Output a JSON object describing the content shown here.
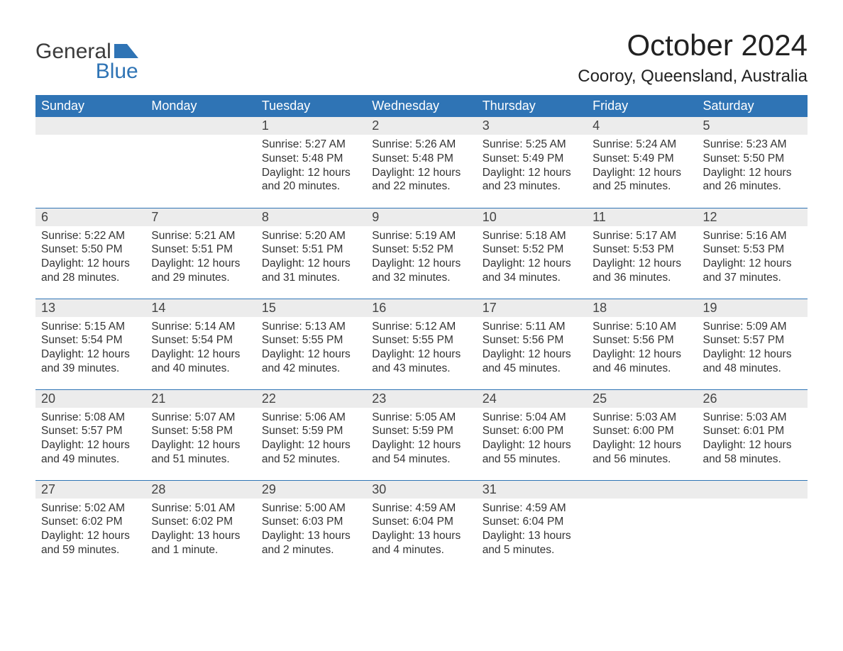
{
  "logo": {
    "word1": "General",
    "word2": "Blue",
    "accent_color": "#2f74b5",
    "text_color": "#3b3b3b"
  },
  "title": "October 2024",
  "location": "Cooroy, Queensland, Australia",
  "colors": {
    "header_bg": "#2f74b5",
    "header_text": "#ffffff",
    "daynum_bg": "#ececec",
    "body_text": "#333333",
    "page_bg": "#ffffff"
  },
  "day_headers": [
    "Sunday",
    "Monday",
    "Tuesday",
    "Wednesday",
    "Thursday",
    "Friday",
    "Saturday"
  ],
  "weeks": [
    [
      null,
      null,
      {
        "n": "1",
        "sr": "Sunrise: 5:27 AM",
        "ss": "Sunset: 5:48 PM",
        "d1": "Daylight: 12 hours",
        "d2": "and 20 minutes."
      },
      {
        "n": "2",
        "sr": "Sunrise: 5:26 AM",
        "ss": "Sunset: 5:48 PM",
        "d1": "Daylight: 12 hours",
        "d2": "and 22 minutes."
      },
      {
        "n": "3",
        "sr": "Sunrise: 5:25 AM",
        "ss": "Sunset: 5:49 PM",
        "d1": "Daylight: 12 hours",
        "d2": "and 23 minutes."
      },
      {
        "n": "4",
        "sr": "Sunrise: 5:24 AM",
        "ss": "Sunset: 5:49 PM",
        "d1": "Daylight: 12 hours",
        "d2": "and 25 minutes."
      },
      {
        "n": "5",
        "sr": "Sunrise: 5:23 AM",
        "ss": "Sunset: 5:50 PM",
        "d1": "Daylight: 12 hours",
        "d2": "and 26 minutes."
      }
    ],
    [
      {
        "n": "6",
        "sr": "Sunrise: 5:22 AM",
        "ss": "Sunset: 5:50 PM",
        "d1": "Daylight: 12 hours",
        "d2": "and 28 minutes."
      },
      {
        "n": "7",
        "sr": "Sunrise: 5:21 AM",
        "ss": "Sunset: 5:51 PM",
        "d1": "Daylight: 12 hours",
        "d2": "and 29 minutes."
      },
      {
        "n": "8",
        "sr": "Sunrise: 5:20 AM",
        "ss": "Sunset: 5:51 PM",
        "d1": "Daylight: 12 hours",
        "d2": "and 31 minutes."
      },
      {
        "n": "9",
        "sr": "Sunrise: 5:19 AM",
        "ss": "Sunset: 5:52 PM",
        "d1": "Daylight: 12 hours",
        "d2": "and 32 minutes."
      },
      {
        "n": "10",
        "sr": "Sunrise: 5:18 AM",
        "ss": "Sunset: 5:52 PM",
        "d1": "Daylight: 12 hours",
        "d2": "and 34 minutes."
      },
      {
        "n": "11",
        "sr": "Sunrise: 5:17 AM",
        "ss": "Sunset: 5:53 PM",
        "d1": "Daylight: 12 hours",
        "d2": "and 36 minutes."
      },
      {
        "n": "12",
        "sr": "Sunrise: 5:16 AM",
        "ss": "Sunset: 5:53 PM",
        "d1": "Daylight: 12 hours",
        "d2": "and 37 minutes."
      }
    ],
    [
      {
        "n": "13",
        "sr": "Sunrise: 5:15 AM",
        "ss": "Sunset: 5:54 PM",
        "d1": "Daylight: 12 hours",
        "d2": "and 39 minutes."
      },
      {
        "n": "14",
        "sr": "Sunrise: 5:14 AM",
        "ss": "Sunset: 5:54 PM",
        "d1": "Daylight: 12 hours",
        "d2": "and 40 minutes."
      },
      {
        "n": "15",
        "sr": "Sunrise: 5:13 AM",
        "ss": "Sunset: 5:55 PM",
        "d1": "Daylight: 12 hours",
        "d2": "and 42 minutes."
      },
      {
        "n": "16",
        "sr": "Sunrise: 5:12 AM",
        "ss": "Sunset: 5:55 PM",
        "d1": "Daylight: 12 hours",
        "d2": "and 43 minutes."
      },
      {
        "n": "17",
        "sr": "Sunrise: 5:11 AM",
        "ss": "Sunset: 5:56 PM",
        "d1": "Daylight: 12 hours",
        "d2": "and 45 minutes."
      },
      {
        "n": "18",
        "sr": "Sunrise: 5:10 AM",
        "ss": "Sunset: 5:56 PM",
        "d1": "Daylight: 12 hours",
        "d2": "and 46 minutes."
      },
      {
        "n": "19",
        "sr": "Sunrise: 5:09 AM",
        "ss": "Sunset: 5:57 PM",
        "d1": "Daylight: 12 hours",
        "d2": "and 48 minutes."
      }
    ],
    [
      {
        "n": "20",
        "sr": "Sunrise: 5:08 AM",
        "ss": "Sunset: 5:57 PM",
        "d1": "Daylight: 12 hours",
        "d2": "and 49 minutes."
      },
      {
        "n": "21",
        "sr": "Sunrise: 5:07 AM",
        "ss": "Sunset: 5:58 PM",
        "d1": "Daylight: 12 hours",
        "d2": "and 51 minutes."
      },
      {
        "n": "22",
        "sr": "Sunrise: 5:06 AM",
        "ss": "Sunset: 5:59 PM",
        "d1": "Daylight: 12 hours",
        "d2": "and 52 minutes."
      },
      {
        "n": "23",
        "sr": "Sunrise: 5:05 AM",
        "ss": "Sunset: 5:59 PM",
        "d1": "Daylight: 12 hours",
        "d2": "and 54 minutes."
      },
      {
        "n": "24",
        "sr": "Sunrise: 5:04 AM",
        "ss": "Sunset: 6:00 PM",
        "d1": "Daylight: 12 hours",
        "d2": "and 55 minutes."
      },
      {
        "n": "25",
        "sr": "Sunrise: 5:03 AM",
        "ss": "Sunset: 6:00 PM",
        "d1": "Daylight: 12 hours",
        "d2": "and 56 minutes."
      },
      {
        "n": "26",
        "sr": "Sunrise: 5:03 AM",
        "ss": "Sunset: 6:01 PM",
        "d1": "Daylight: 12 hours",
        "d2": "and 58 minutes."
      }
    ],
    [
      {
        "n": "27",
        "sr": "Sunrise: 5:02 AM",
        "ss": "Sunset: 6:02 PM",
        "d1": "Daylight: 12 hours",
        "d2": "and 59 minutes."
      },
      {
        "n": "28",
        "sr": "Sunrise: 5:01 AM",
        "ss": "Sunset: 6:02 PM",
        "d1": "Daylight: 13 hours",
        "d2": "and 1 minute."
      },
      {
        "n": "29",
        "sr": "Sunrise: 5:00 AM",
        "ss": "Sunset: 6:03 PM",
        "d1": "Daylight: 13 hours",
        "d2": "and 2 minutes."
      },
      {
        "n": "30",
        "sr": "Sunrise: 4:59 AM",
        "ss": "Sunset: 6:04 PM",
        "d1": "Daylight: 13 hours",
        "d2": "and 4 minutes."
      },
      {
        "n": "31",
        "sr": "Sunrise: 4:59 AM",
        "ss": "Sunset: 6:04 PM",
        "d1": "Daylight: 13 hours",
        "d2": "and 5 minutes."
      },
      null,
      null
    ]
  ]
}
